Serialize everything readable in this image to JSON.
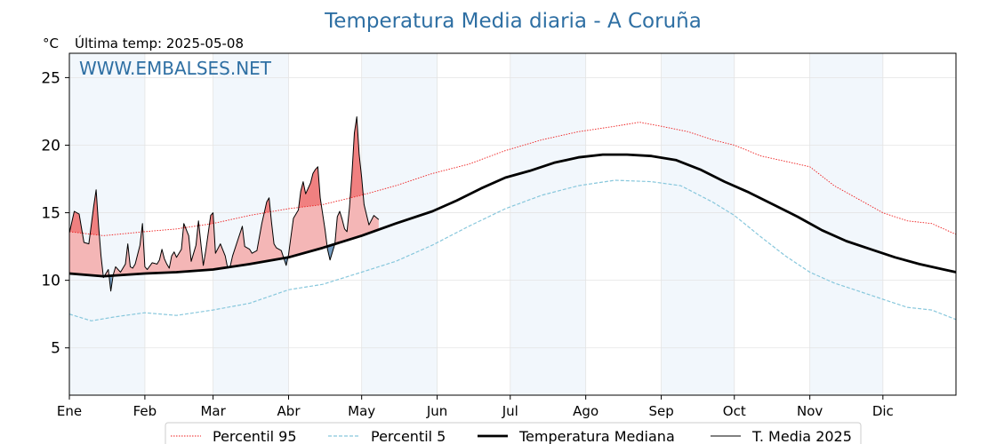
{
  "chart_data": {
    "type": "line",
    "title": "Temperatura Media diaria - A Coruña",
    "unit_label": "°C",
    "last_temp_label": "Última temp: 2025-05-08",
    "watermark": "WWW.EMBALSES.NET",
    "xlabel": "",
    "ylabel": "",
    "x_unit": "day of year",
    "xlim": [
      1,
      365
    ],
    "ylim": [
      1.5,
      26.8
    ],
    "yticks": [
      5,
      10,
      15,
      20,
      25
    ],
    "months": [
      "Ene",
      "Feb",
      "Mar",
      "Abr",
      "May",
      "Jun",
      "Jul",
      "Ago",
      "Sep",
      "Oct",
      "Nov",
      "Dic"
    ],
    "month_start_days": [
      1,
      32,
      60,
      91,
      121,
      152,
      182,
      213,
      244,
      274,
      305,
      335
    ],
    "shaded_months": [
      0,
      2,
      4,
      6,
      8,
      10
    ],
    "grid": true,
    "legend_position": "bottom",
    "colors": {
      "p95": "#ee1c1c",
      "p5": "#87c7dc",
      "median": "#000000",
      "current": "#000000",
      "above_fill": "#f08080",
      "above_fill_light": "#f4b6b6",
      "below_fill": "#4a7fb0",
      "title": "#2e6fa3",
      "month_shade": "#f2f7fc"
    },
    "series": [
      {
        "name": "Percentil 95",
        "style": "dotted",
        "points": [
          [
            1,
            13.6
          ],
          [
            15,
            13.3
          ],
          [
            32,
            13.6
          ],
          [
            45,
            13.8
          ],
          [
            60,
            14.2
          ],
          [
            75,
            14.8
          ],
          [
            91,
            15.3
          ],
          [
            105,
            15.6
          ],
          [
            121,
            16.3
          ],
          [
            135,
            17.0
          ],
          [
            150,
            17.9
          ],
          [
            165,
            18.6
          ],
          [
            180,
            19.6
          ],
          [
            195,
            20.4
          ],
          [
            210,
            21.0
          ],
          [
            225,
            21.4
          ],
          [
            235,
            21.7
          ],
          [
            244,
            21.4
          ],
          [
            255,
            21.0
          ],
          [
            265,
            20.4
          ],
          [
            274,
            20.0
          ],
          [
            285,
            19.2
          ],
          [
            295,
            18.8
          ],
          [
            305,
            18.4
          ],
          [
            315,
            17.0
          ],
          [
            325,
            16.0
          ],
          [
            335,
            15.0
          ],
          [
            345,
            14.4
          ],
          [
            355,
            14.2
          ],
          [
            365,
            13.4
          ]
        ]
      },
      {
        "name": "Percentil 5",
        "style": "dashed",
        "points": [
          [
            1,
            7.5
          ],
          [
            10,
            7.0
          ],
          [
            20,
            7.3
          ],
          [
            32,
            7.6
          ],
          [
            45,
            7.4
          ],
          [
            60,
            7.8
          ],
          [
            75,
            8.3
          ],
          [
            91,
            9.3
          ],
          [
            105,
            9.7
          ],
          [
            121,
            10.6
          ],
          [
            135,
            11.4
          ],
          [
            150,
            12.6
          ],
          [
            165,
            14.0
          ],
          [
            180,
            15.3
          ],
          [
            195,
            16.3
          ],
          [
            210,
            17.0
          ],
          [
            225,
            17.4
          ],
          [
            240,
            17.3
          ],
          [
            252,
            17.0
          ],
          [
            265,
            15.8
          ],
          [
            274,
            14.8
          ],
          [
            285,
            13.2
          ],
          [
            295,
            11.8
          ],
          [
            305,
            10.6
          ],
          [
            315,
            9.8
          ],
          [
            325,
            9.2
          ],
          [
            335,
            8.6
          ],
          [
            345,
            8.0
          ],
          [
            355,
            7.8
          ],
          [
            365,
            7.1
          ]
        ]
      },
      {
        "name": "Temperatura Mediana",
        "style": "solid-thick",
        "points": [
          [
            1,
            10.5
          ],
          [
            15,
            10.3
          ],
          [
            32,
            10.5
          ],
          [
            45,
            10.6
          ],
          [
            60,
            10.8
          ],
          [
            75,
            11.2
          ],
          [
            91,
            11.7
          ],
          [
            105,
            12.4
          ],
          [
            121,
            13.3
          ],
          [
            135,
            14.2
          ],
          [
            150,
            15.1
          ],
          [
            160,
            15.9
          ],
          [
            170,
            16.8
          ],
          [
            180,
            17.6
          ],
          [
            190,
            18.1
          ],
          [
            200,
            18.7
          ],
          [
            210,
            19.1
          ],
          [
            220,
            19.3
          ],
          [
            230,
            19.3
          ],
          [
            240,
            19.2
          ],
          [
            250,
            18.9
          ],
          [
            260,
            18.2
          ],
          [
            270,
            17.3
          ],
          [
            280,
            16.5
          ],
          [
            290,
            15.6
          ],
          [
            300,
            14.7
          ],
          [
            310,
            13.7
          ],
          [
            320,
            12.9
          ],
          [
            330,
            12.3
          ],
          [
            340,
            11.7
          ],
          [
            350,
            11.2
          ],
          [
            360,
            10.8
          ],
          [
            365,
            10.6
          ]
        ]
      },
      {
        "name": "T. Media 2025",
        "style": "solid-thin",
        "points": [
          [
            1,
            13.5
          ],
          [
            3,
            15.1
          ],
          [
            5,
            14.9
          ],
          [
            7,
            12.8
          ],
          [
            9,
            12.7
          ],
          [
            11,
            15.5
          ],
          [
            12,
            16.7
          ],
          [
            13,
            14.0
          ],
          [
            14,
            11.8
          ],
          [
            15,
            10.2
          ],
          [
            17,
            10.8
          ],
          [
            18,
            9.2
          ],
          [
            19,
            10.4
          ],
          [
            20,
            11.0
          ],
          [
            22,
            10.6
          ],
          [
            24,
            11.2
          ],
          [
            25,
            12.7
          ],
          [
            26,
            11.0
          ],
          [
            27,
            10.9
          ],
          [
            28,
            11.2
          ],
          [
            30,
            12.6
          ],
          [
            31,
            14.2
          ],
          [
            32,
            11.0
          ],
          [
            33,
            10.8
          ],
          [
            35,
            11.3
          ],
          [
            37,
            11.2
          ],
          [
            38,
            11.5
          ],
          [
            39,
            12.3
          ],
          [
            40,
            11.6
          ],
          [
            41,
            11.2
          ],
          [
            42,
            10.9
          ],
          [
            43,
            11.8
          ],
          [
            44,
            12.1
          ],
          [
            45,
            11.7
          ],
          [
            47,
            12.3
          ],
          [
            48,
            14.2
          ],
          [
            50,
            13.3
          ],
          [
            51,
            11.4
          ],
          [
            52,
            12.0
          ],
          [
            53,
            12.6
          ],
          [
            54,
            14.4
          ],
          [
            55,
            12.7
          ],
          [
            56,
            11.1
          ],
          [
            57,
            12.2
          ],
          [
            59,
            14.8
          ],
          [
            60,
            15.0
          ],
          [
            61,
            12.0
          ],
          [
            63,
            12.7
          ],
          [
            65,
            11.8
          ],
          [
            66,
            10.9
          ],
          [
            67,
            11.0
          ],
          [
            68,
            11.8
          ],
          [
            70,
            12.9
          ],
          [
            72,
            14.0
          ],
          [
            73,
            12.5
          ],
          [
            75,
            12.3
          ],
          [
            76,
            12.0
          ],
          [
            78,
            12.2
          ],
          [
            80,
            14.2
          ],
          [
            82,
            15.8
          ],
          [
            83,
            16.1
          ],
          [
            84,
            14.3
          ],
          [
            85,
            12.7
          ],
          [
            86,
            12.4
          ],
          [
            88,
            12.2
          ],
          [
            90,
            11.1
          ],
          [
            91,
            11.9
          ],
          [
            92,
            13.3
          ],
          [
            93,
            14.6
          ],
          [
            95,
            15.2
          ],
          [
            96,
            16.6
          ],
          [
            97,
            17.3
          ],
          [
            98,
            16.4
          ],
          [
            100,
            17.2
          ],
          [
            101,
            17.9
          ],
          [
            102,
            18.2
          ],
          [
            103,
            18.4
          ],
          [
            104,
            16.1
          ],
          [
            106,
            13.7
          ],
          [
            107,
            12.3
          ],
          [
            108,
            11.5
          ],
          [
            110,
            12.7
          ],
          [
            111,
            14.7
          ],
          [
            112,
            15.1
          ],
          [
            113,
            14.5
          ],
          [
            114,
            13.8
          ],
          [
            115,
            13.6
          ],
          [
            116,
            15.4
          ],
          [
            117,
            17.8
          ],
          [
            118,
            20.9
          ],
          [
            119,
            22.1
          ],
          [
            120,
            19.3
          ],
          [
            121,
            17.6
          ],
          [
            122,
            15.6
          ],
          [
            124,
            14.1
          ],
          [
            126,
            14.8
          ],
          [
            128,
            14.5
          ]
        ]
      }
    ]
  },
  "legend": {
    "items": [
      "Percentil 95",
      "Percentil 5",
      "Temperatura Mediana",
      "T. Media 2025"
    ]
  }
}
